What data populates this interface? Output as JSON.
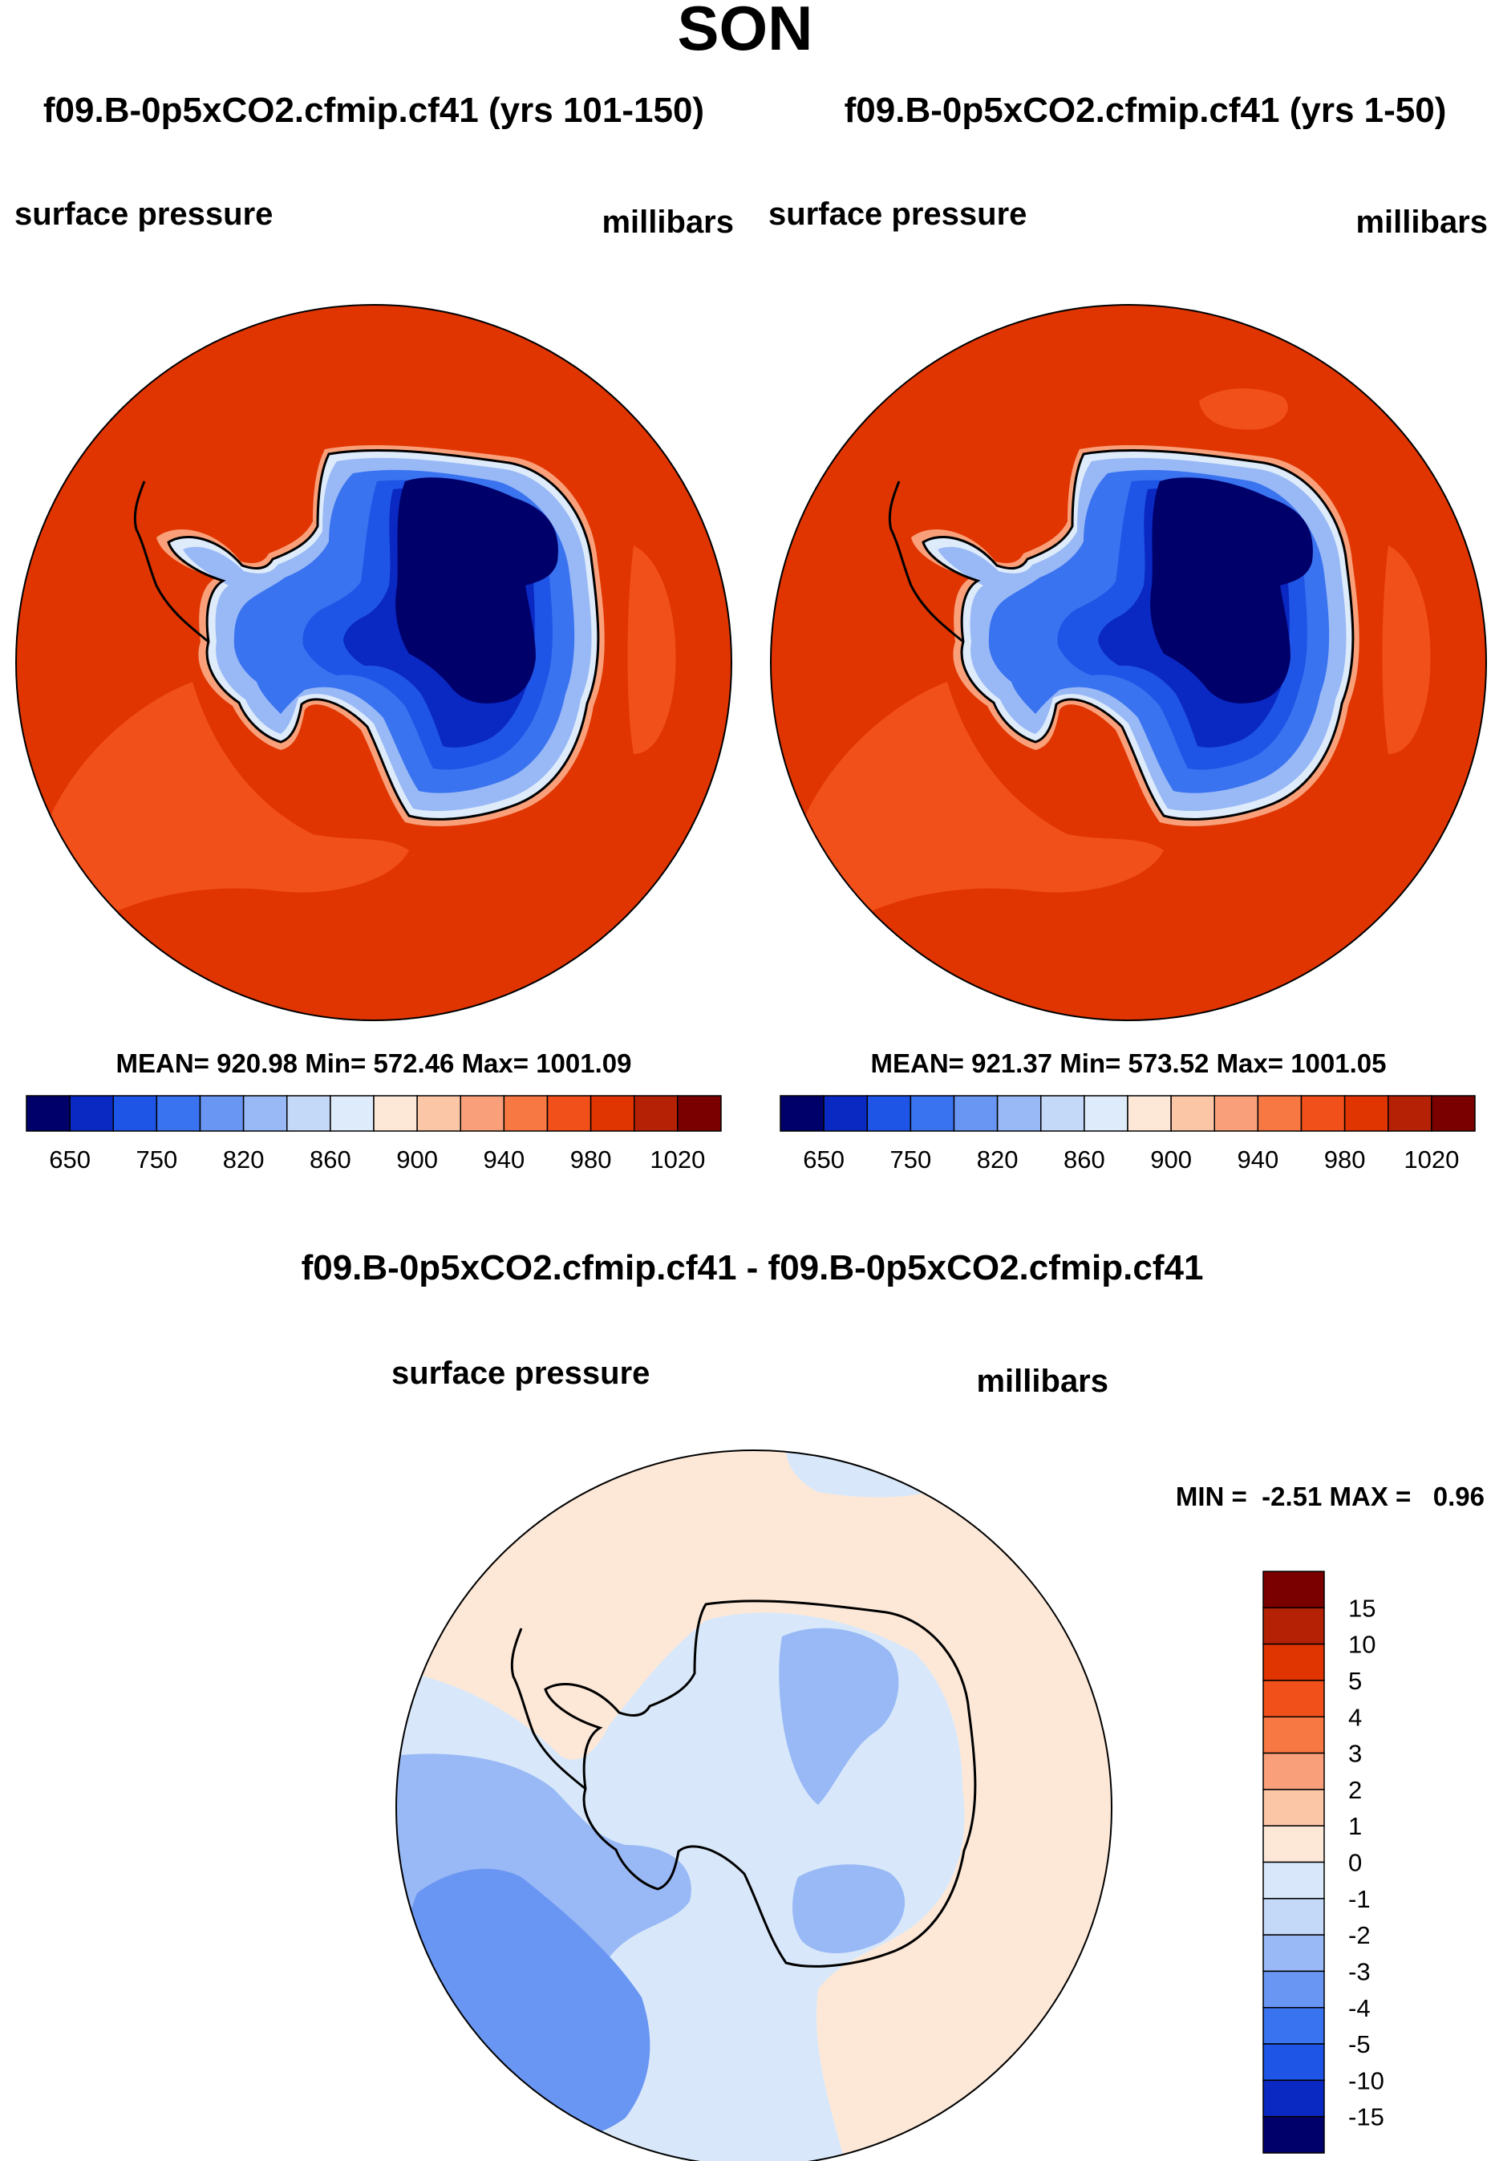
{
  "figure": {
    "season": "SON",
    "difference_title": "f09.B-0p5xCO2.cfmip.cf41 - f09.B-0p5xCO2.cfmip.cf41"
  },
  "colors": {
    "abs_palette": [
      "#00006b",
      "#0a28c2",
      "#1e55e6",
      "#3a73f0",
      "#6a96f3",
      "#99b9f6",
      "#c4d8f8",
      "#deebfa",
      "#fde8d8",
      "#fbc6a6",
      "#f9a07a",
      "#f77843",
      "#f2501a",
      "#e03500",
      "#b52104",
      "#7a0000"
    ],
    "diff_palette": [
      "#00006b",
      "#0a28c2",
      "#1e55e6",
      "#3a73f0",
      "#6a96f3",
      "#99b9f6",
      "#c4d8f8",
      "#d8e8fa",
      "#fde8d8",
      "#fbc6a6",
      "#f9a07a",
      "#f77843",
      "#f2501a",
      "#e03500",
      "#b52104",
      "#7a0000"
    ]
  },
  "panels": {
    "left": {
      "title": "f09.B-0p5xCO2.cfmip.cf41 (yrs 101-150)",
      "variable": "surface pressure",
      "units": "millibars",
      "stats": "MEAN= 920.98  Min= 572.46  Max= 1001.09",
      "cb_ticks": [
        "650",
        "750",
        "820",
        "860",
        "900",
        "940",
        "980",
        "1020"
      ]
    },
    "right": {
      "title": "f09.B-0p5xCO2.cfmip.cf41 (yrs 1-50)",
      "variable": "surface pressure",
      "units": "millibars",
      "stats": "MEAN= 921.37  Min= 573.52  Max= 1001.05",
      "cb_ticks": [
        "650",
        "750",
        "820",
        "860",
        "900",
        "940",
        "980",
        "1020"
      ]
    },
    "diff": {
      "variable": "surface pressure",
      "units": "millibars",
      "minmax": "MIN =  -2.51 MAX =   0.96",
      "cb_ticks": [
        "15",
        "10",
        "5",
        "4",
        "3",
        "2",
        "1",
        "0",
        "-1",
        "-2",
        "-3",
        "-4",
        "-5",
        "-10",
        "-15"
      ]
    }
  },
  "chart_data": [
    {
      "type": "heatmap",
      "title": "f09.B-0p5xCO2.cfmip.cf41 (yrs 101-150)",
      "variable": "surface pressure",
      "units": "millibars",
      "projection": "south polar stereographic",
      "mean": 920.98,
      "min": 572.46,
      "max": 1001.09,
      "contour_levels": [
        650,
        700,
        750,
        800,
        820,
        840,
        860,
        880,
        900,
        920,
        940,
        960,
        980,
        1000,
        1020
      ],
      "colorbar_labels": [
        650,
        750,
        820,
        860,
        900,
        940,
        980,
        1020
      ]
    },
    {
      "type": "heatmap",
      "title": "f09.B-0p5xCO2.cfmip.cf41 (yrs 1-50)",
      "variable": "surface pressure",
      "units": "millibars",
      "projection": "south polar stereographic",
      "mean": 921.37,
      "min": 573.52,
      "max": 1001.05,
      "contour_levels": [
        650,
        700,
        750,
        800,
        820,
        840,
        860,
        880,
        900,
        920,
        940,
        960,
        980,
        1000,
        1020
      ],
      "colorbar_labels": [
        650,
        750,
        820,
        860,
        900,
        940,
        980,
        1020
      ]
    },
    {
      "type": "heatmap",
      "title": "f09.B-0p5xCO2.cfmip.cf41 - f09.B-0p5xCO2.cfmip.cf41",
      "variable": "surface pressure",
      "units": "millibars",
      "projection": "south polar stereographic",
      "min": -2.51,
      "max": 0.96,
      "contour_levels": [
        -15,
        -10,
        -5,
        -4,
        -3,
        -2,
        -1,
        0,
        1,
        2,
        3,
        4,
        5,
        10,
        15
      ],
      "colorbar_labels": [
        15,
        10,
        5,
        4,
        3,
        2,
        1,
        0,
        -1,
        -2,
        -3,
        -4,
        -5,
        -10,
        -15
      ]
    }
  ]
}
